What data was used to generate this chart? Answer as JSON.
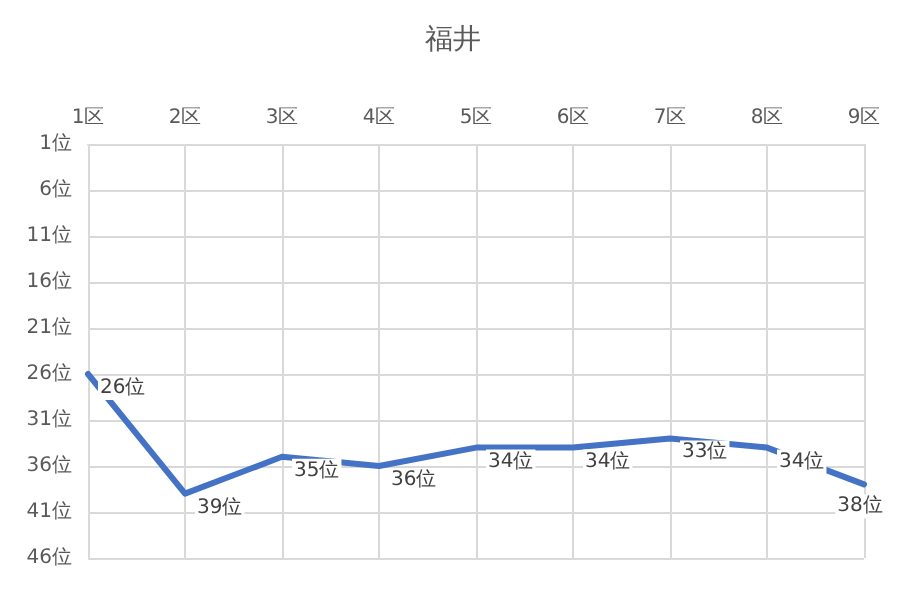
{
  "chart_data": {
    "type": "line",
    "title": "福井",
    "categories": [
      "1区",
      "2区",
      "3区",
      "4区",
      "5区",
      "6区",
      "7区",
      "8区",
      "9区"
    ],
    "series": [
      {
        "color": "#4472c4",
        "values": [
          26,
          39,
          35,
          36,
          34,
          34,
          33,
          34,
          38
        ],
        "value_labels": [
          "26位",
          "39位",
          "35位",
          "36位",
          "34位",
          "34位",
          "33位",
          "34位",
          "38位"
        ]
      }
    ],
    "ylim": [
      46,
      1
    ],
    "yticks": [
      {
        "value": 1,
        "label": "1位"
      },
      {
        "value": 6,
        "label": "6位"
      },
      {
        "value": 11,
        "label": "11位"
      },
      {
        "value": 16,
        "label": "16位"
      },
      {
        "value": 21,
        "label": "21位"
      },
      {
        "value": 26,
        "label": "26位"
      },
      {
        "value": 31,
        "label": "31位"
      },
      {
        "value": 36,
        "label": "36位"
      },
      {
        "value": 41,
        "label": "41位"
      },
      {
        "value": 46,
        "label": "46位"
      }
    ],
    "grid": true,
    "marker": "none",
    "line_style": "solid"
  }
}
